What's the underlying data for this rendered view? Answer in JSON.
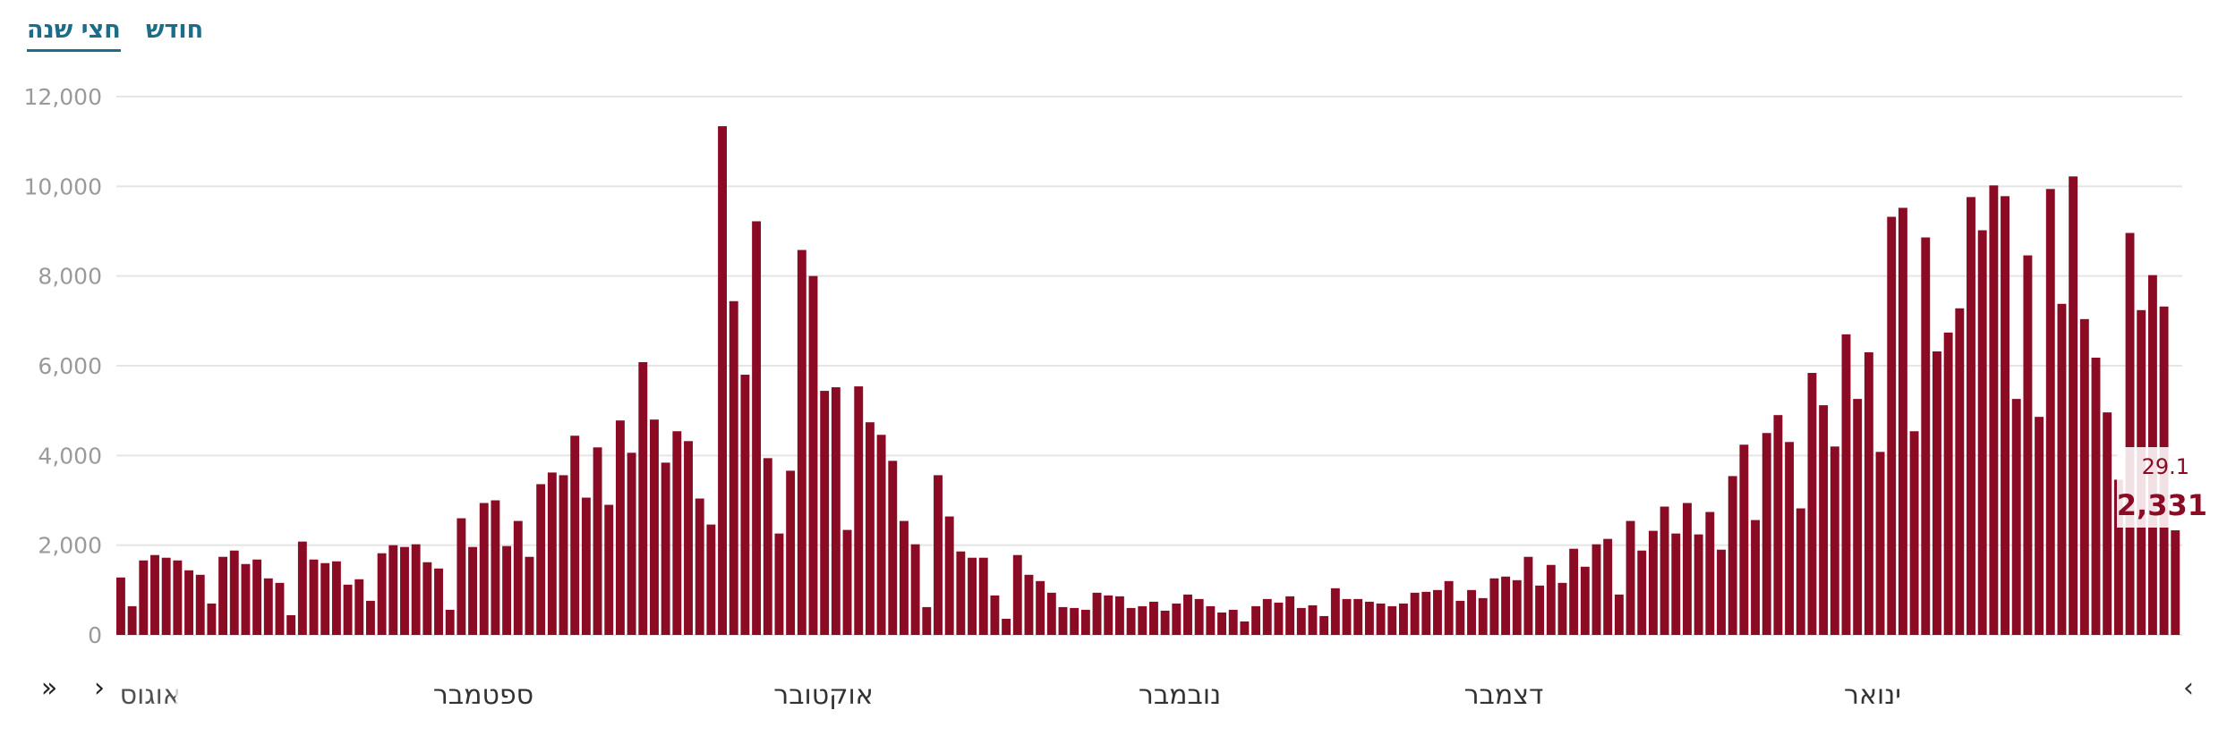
{
  "tabs": {
    "half_year": "חצי שנה",
    "month": "חודש"
  },
  "nav": {
    "first": "»",
    "prev": "›",
    "next": "‹"
  },
  "tooltip": {
    "date": "29.1",
    "value": "2,331"
  },
  "colors": {
    "bar": "#8b0a24",
    "grid": "#e5e5e5",
    "tick": "#9a9a9a",
    "tab": "#1b6d8a"
  },
  "chart_data": {
    "type": "bar",
    "ylim": [
      0,
      12000
    ],
    "y_ticks": [
      "0",
      "2,000",
      "4,000",
      "6,000",
      "8,000",
      "10,000",
      "12,000"
    ],
    "month_labels": [
      "אוגוסט",
      "ספטמבר",
      "אוקטובר",
      "נובמבר",
      "דצמבר",
      "ינואר"
    ],
    "grid": true,
    "values": [
      1280,
      640,
      1660,
      1780,
      1720,
      1660,
      1440,
      1340,
      700,
      1740,
      1880,
      1580,
      1680,
      1260,
      1160,
      440,
      2080,
      1680,
      1600,
      1640,
      1120,
      1240,
      760,
      1820,
      2000,
      1960,
      2020,
      1620,
      1480,
      560,
      2600,
      1960,
      2940,
      3000,
      1980,
      2540,
      1740,
      3360,
      3620,
      3560,
      4440,
      3060,
      4180,
      2900,
      4780,
      4060,
      6080,
      4800,
      3840,
      4540,
      4320,
      3040,
      2460,
      11340,
      7440,
      5800,
      9220,
      3940,
      2260,
      3660,
      8580,
      8000,
      5440,
      5520,
      2340,
      5540,
      4740,
      4460,
      3880,
      2540,
      2020,
      620,
      3560,
      2640,
      1860,
      1720,
      1720,
      880,
      360,
      1780,
      1340,
      1200,
      940,
      620,
      600,
      560,
      940,
      880,
      860,
      600,
      640,
      740,
      540,
      700,
      900,
      800,
      640,
      500,
      560,
      300,
      640,
      800,
      720,
      860,
      600,
      660,
      420,
      1040,
      800,
      800,
      740,
      700,
      640,
      700,
      940,
      960,
      1000,
      1200,
      760,
      1000,
      820,
      1260,
      1300,
      1220,
      1740,
      1100,
      1560,
      1160,
      1920,
      1520,
      2020,
      2140,
      900,
      2540,
      1880,
      2320,
      2860,
      2260,
      2940,
      2240,
      2740,
      1900,
      3540,
      4240,
      2560,
      4500,
      4900,
      4300,
      2820,
      5840,
      5120,
      4200,
      6700,
      5260,
      6300,
      4080,
      9320,
      9520,
      4540,
      8860,
      6320,
      6740,
      7280,
      9760,
      9020,
      10020,
      9780,
      5260,
      8460,
      4860,
      9940,
      7380,
      10220,
      7040,
      6180,
      4960,
      3460,
      8960,
      7240,
      8020,
      7320,
      2331
    ]
  }
}
